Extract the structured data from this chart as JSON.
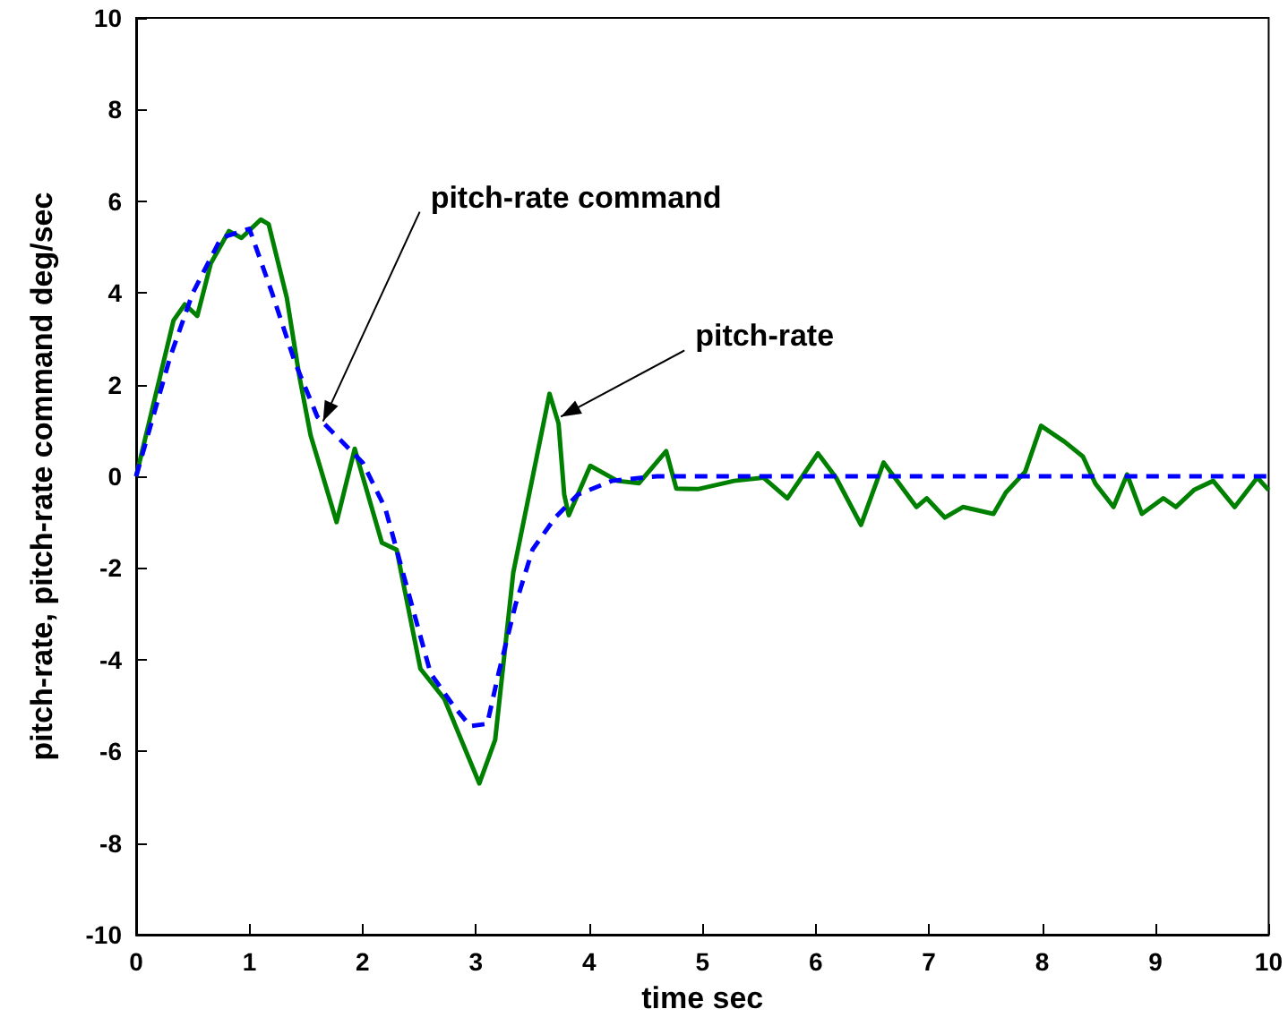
{
  "chart_data": {
    "type": "line",
    "xlabel": "time sec",
    "ylabel": "pitch-rate, pitch-rate command deg/sec",
    "xlim": [
      0,
      10
    ],
    "xticks": [
      0,
      1,
      2,
      3,
      4,
      5,
      6,
      7,
      8,
      9,
      10
    ],
    "ylim": [
      -10,
      10
    ],
    "yticks": [
      -10,
      -8,
      -6,
      -4,
      -2,
      0,
      2,
      4,
      6,
      8,
      10
    ],
    "marker": "none",
    "series": [
      {
        "color": "#008000",
        "line_style": "solid",
        "x": [
          0,
          0.33,
          0.43,
          0.54,
          0.66,
          0.82,
          0.93,
          1.1,
          1.17,
          1.33,
          1.44,
          1.54,
          1.77,
          1.93,
          2.0,
          2.17,
          2.3,
          2.51,
          2.72,
          3.03,
          3.17,
          3.33,
          3.65,
          3.73,
          3.78,
          3.82,
          4.01,
          4.25,
          4.44,
          4.68,
          4.77,
          4.96,
          5.28,
          5.54,
          5.75,
          6.02,
          6.18,
          6.4,
          6.6,
          6.89,
          6.98,
          7.14,
          7.3,
          7.57,
          7.68,
          7.85,
          7.99,
          8.2,
          8.36,
          8.47,
          8.63,
          8.75,
          8.88,
          9.07,
          9.18,
          9.34,
          9.51,
          9.7,
          9.9,
          10
        ],
        "values": [
          0,
          3.4,
          3.75,
          3.5,
          4.65,
          5.35,
          5.2,
          5.6,
          5.5,
          3.9,
          2.2,
          0.9,
          -1.0,
          0.6,
          0,
          -1.45,
          -1.6,
          -4.2,
          -4.85,
          -6.7,
          -5.75,
          -2.1,
          1.8,
          1.15,
          -0.4,
          -0.85,
          0.23,
          -0.1,
          -0.15,
          0.55,
          -0.27,
          -0.28,
          -0.1,
          -0.03,
          -0.48,
          0.5,
          -0.03,
          -1.06,
          0.3,
          -0.67,
          -0.48,
          -0.9,
          -0.67,
          -0.82,
          -0.35,
          0.1,
          1.1,
          0.75,
          0.43,
          -0.16,
          -0.67,
          0.04,
          -0.82,
          -0.48,
          -0.67,
          -0.3,
          -0.1,
          -0.67,
          -0.03,
          -0.3
        ]
      },
      {
        "color": "#0000ff",
        "line_style": "dashed",
        "x": [
          0,
          0.3,
          0.5,
          0.75,
          1.0,
          1.2,
          1.4,
          1.6,
          1.8,
          2.0,
          2.2,
          2.4,
          2.6,
          2.8,
          2.95,
          3.1,
          3.2,
          3.35,
          3.5,
          3.7,
          3.9,
          4.2,
          4.6,
          10
        ],
        "values": [
          0,
          2.6,
          4.0,
          5.2,
          5.4,
          4.0,
          2.5,
          1.3,
          0.8,
          0.3,
          -0.7,
          -2.5,
          -4.3,
          -5.0,
          -5.45,
          -5.4,
          -4.3,
          -2.8,
          -1.6,
          -0.9,
          -0.4,
          -0.1,
          0,
          0
        ]
      }
    ],
    "annotations": [
      {
        "text": "pitch-rate command",
        "x": 1.65,
        "y": 1.2
      },
      {
        "text": "pitch-rate",
        "x": 3.75,
        "y": 1.3
      }
    ]
  }
}
